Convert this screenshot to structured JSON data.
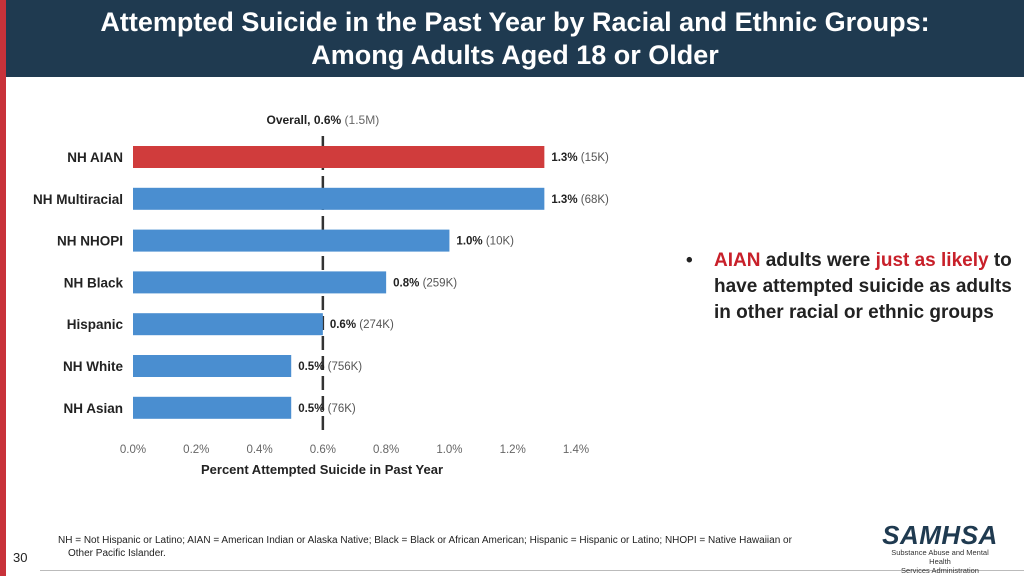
{
  "header": {
    "title_line1": "Attempted Suicide in the Past Year by Racial and Ethnic Groups:",
    "title_line2": "Among Adults Aged 18 or Older"
  },
  "chart_data": {
    "type": "bar",
    "orientation": "horizontal",
    "categories": [
      "NH AIAN",
      "NH Multiracial",
      "NH NHOPI",
      "NH Black",
      "Hispanic",
      "NH White",
      "NH Asian"
    ],
    "values": [
      1.3,
      1.3,
      1.0,
      0.8,
      0.6,
      0.5,
      0.5
    ],
    "value_labels": [
      "1.3%",
      "1.3%",
      "1.0%",
      "0.8%",
      "0.6%",
      "0.5%",
      "0.5%"
    ],
    "count_labels": [
      "(15K)",
      "(68K)",
      "(10K)",
      "(259K)",
      "(274K)",
      "(756K)",
      "(76K)"
    ],
    "xlabel": "Percent Attempted Suicide in Past Year",
    "xlim": [
      0,
      1.4
    ],
    "xticks": [
      0.0,
      0.2,
      0.4,
      0.6,
      0.8,
      1.0,
      1.2,
      1.4
    ],
    "xtick_labels": [
      "0.0%",
      "0.2%",
      "0.4%",
      "0.6%",
      "0.8%",
      "1.0%",
      "1.2%",
      "1.4%"
    ],
    "reference": {
      "label": "Overall, 0.6%",
      "count": "(1.5M)",
      "value": 0.6
    },
    "highlight_index": 0,
    "colors": {
      "highlight": "#d03c3c",
      "bar": "#4a8ed0",
      "reference": "#333333"
    },
    "grid": false
  },
  "bullet": {
    "marker": "•",
    "part1": "AIAN",
    "part2": " adults were ",
    "part3": "just as likely",
    "part4": " to have attempted suicide as adults in other racial or ethnic groups"
  },
  "footnote": {
    "line1": "NH = Not Hispanic or Latino; AIAN = American Indian or Alaska Native; Black = Black or African American; Hispanic = Hispanic or Latino; NHOPI = Native Hawaiian or",
    "line2": "Other Pacific Islander."
  },
  "page_number": "30",
  "logo": {
    "name": "SAMHSA",
    "sub1": "Substance Abuse and Mental Health",
    "sub2": "Services Administration"
  }
}
